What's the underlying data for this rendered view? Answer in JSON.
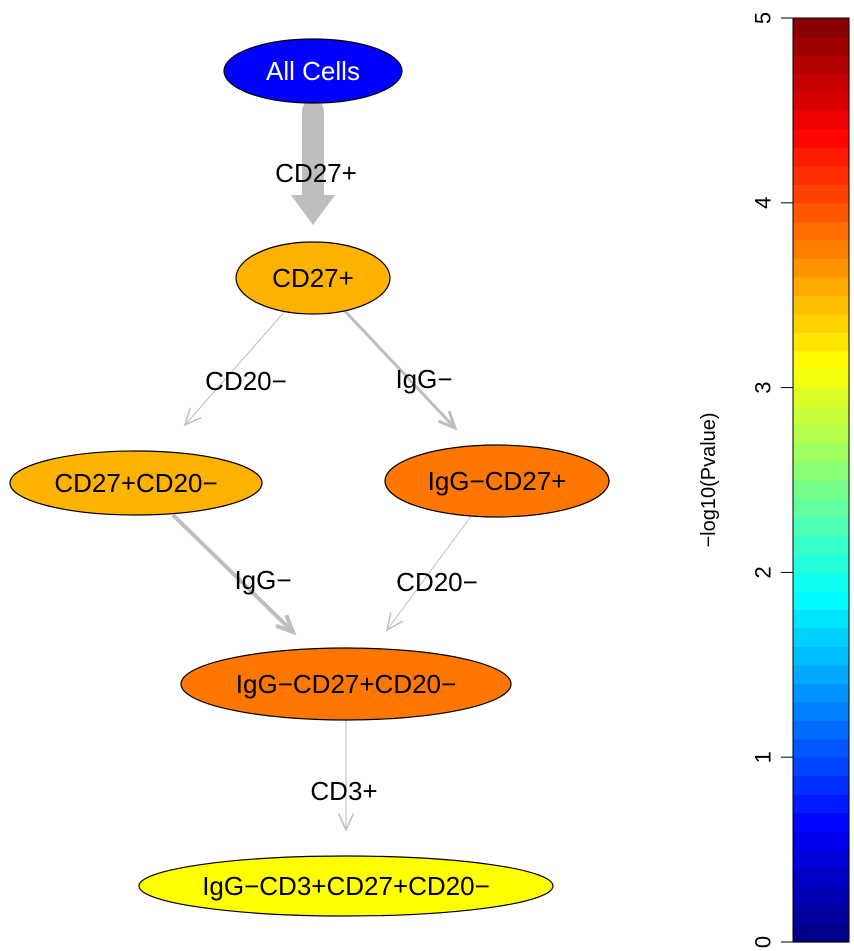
{
  "nodes": [
    {
      "id": "all",
      "label": "All Cells",
      "fill": "#0000FF",
      "text_color": "#FFFFFF"
    },
    {
      "id": "cd27",
      "label": "CD27+",
      "fill": "#FFB300",
      "text_color": "#000000"
    },
    {
      "id": "cd27cd20",
      "label": "CD27+CD20−",
      "fill": "#FFB300",
      "text_color": "#000000"
    },
    {
      "id": "iggcd27",
      "label": "IgG−CD27+",
      "fill": "#FF7700",
      "text_color": "#000000"
    },
    {
      "id": "iggcd27cd20",
      "label": "IgG−CD27+CD20−",
      "fill": "#FF7700",
      "text_color": "#000000"
    },
    {
      "id": "iggcd3cd27cd20",
      "label": "IgG−CD3+CD27+CD20−",
      "fill": "#FFFF00",
      "text_color": "#000000"
    }
  ],
  "edges": [
    {
      "from": "all",
      "to": "cd27",
      "label": "CD27+"
    },
    {
      "from": "cd27",
      "to": "cd27cd20",
      "label": "CD20−"
    },
    {
      "from": "cd27",
      "to": "iggcd27",
      "label": "IgG−"
    },
    {
      "from": "cd27cd20",
      "to": "iggcd27cd20",
      "label": "IgG−"
    },
    {
      "from": "iggcd27",
      "to": "iggcd27cd20",
      "label": "CD20−"
    },
    {
      "from": "iggcd27cd20",
      "to": "iggcd3cd27cd20",
      "label": "CD3+"
    }
  ],
  "colorbar": {
    "title": "−log10(Pvalue)",
    "min": 0,
    "max": 5,
    "ticks": [
      "0",
      "1",
      "2",
      "3",
      "4",
      "5"
    ],
    "palette": "jet"
  }
}
